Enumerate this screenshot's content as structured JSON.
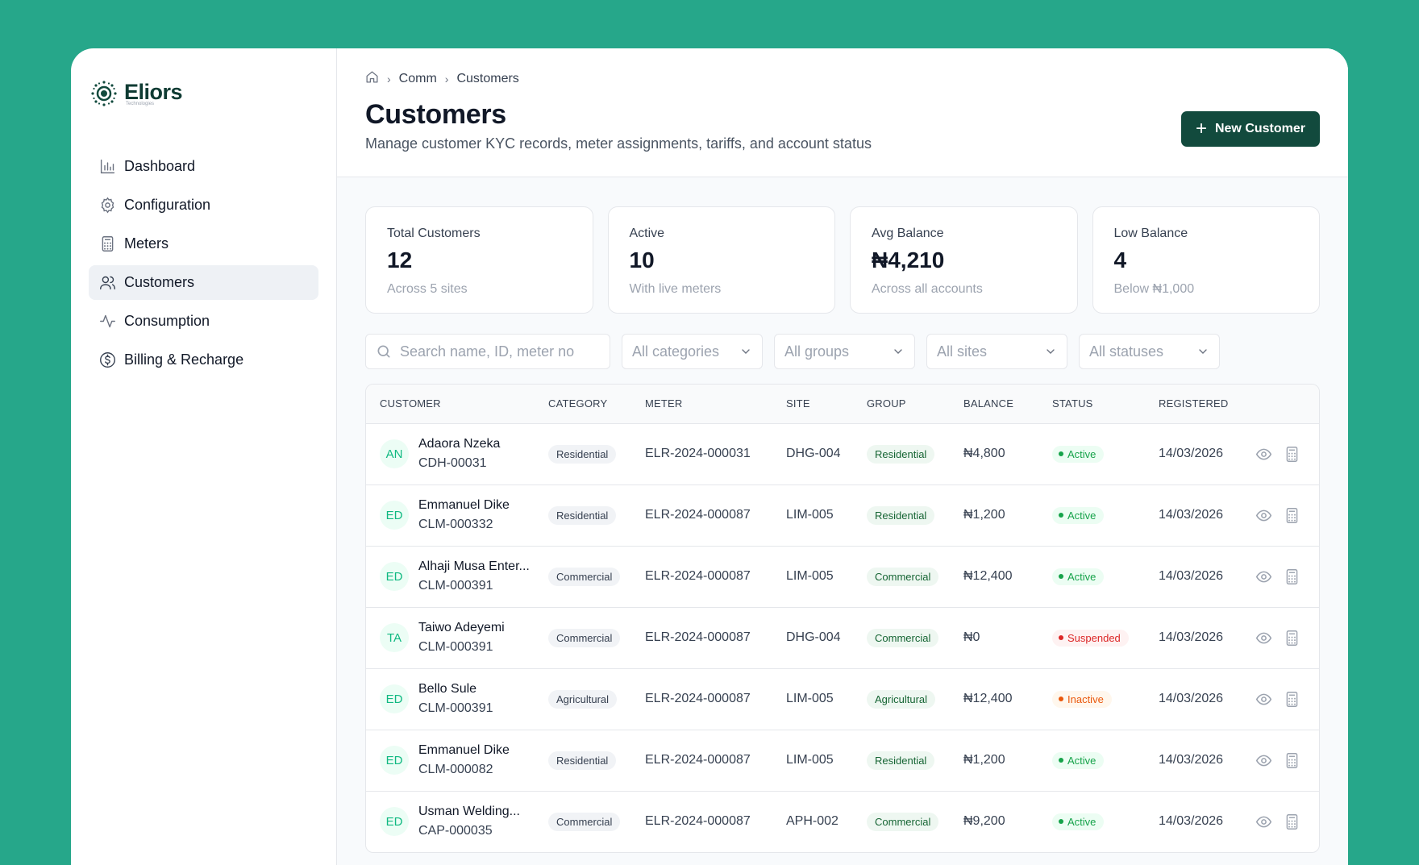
{
  "brand": {
    "name": "Eliors",
    "sub": "Technologies"
  },
  "sidebar": {
    "items": [
      {
        "label": "Dashboard",
        "icon": "bar-chart-icon"
      },
      {
        "label": "Configuration",
        "icon": "gear-icon"
      },
      {
        "label": "Meters",
        "icon": "calculator-icon"
      },
      {
        "label": "Customers",
        "icon": "users-icon",
        "active": true
      },
      {
        "label": "Consumption",
        "icon": "activity-icon"
      },
      {
        "label": "Billing & Recharge",
        "icon": "dollar-circle-icon"
      }
    ]
  },
  "breadcrumb": {
    "home_icon": "home-icon",
    "items": [
      "Comm",
      "Customers"
    ]
  },
  "header": {
    "title": "Customers",
    "subtitle": "Manage customer KYC records, meter assignments, tariffs, and account status",
    "new_button": "New Customer"
  },
  "stats": [
    {
      "label": "Total Customers",
      "value": "12",
      "note": "Across 5 sites"
    },
    {
      "label": "Active",
      "value": "10",
      "note": "With live meters"
    },
    {
      "label": "Avg Balance",
      "value": "₦4,210",
      "note": "Across all accounts"
    },
    {
      "label": "Low Balance",
      "value": "4",
      "note": "Below ₦1,000"
    }
  ],
  "filters": {
    "search_placeholder": "Search name, ID, meter no",
    "category": "All categories",
    "group": "All groups",
    "site": "All sites",
    "status": "All statuses"
  },
  "table": {
    "headers": [
      "Customer",
      "Category",
      "Meter",
      "Site",
      "Group",
      "Balance",
      "Status",
      "Registered"
    ],
    "rows": [
      {
        "initials": "AN",
        "name": "Adaora Nzeka",
        "id": "CDH-00031",
        "category": "Residential",
        "meter": "ELR-2024-000031",
        "site": "DHG-004",
        "group": "Residential",
        "balance": "₦4,800",
        "status": "Active",
        "status_kind": "active",
        "registered": "14/03/2026"
      },
      {
        "initials": "ED",
        "name": "Emmanuel Dike",
        "id": "CLM-000332",
        "category": "Residential",
        "meter": "ELR-2024-000087",
        "site": "LIM-005",
        "group": "Residential",
        "balance": "₦1,200",
        "status": "Active",
        "status_kind": "active",
        "registered": "14/03/2026"
      },
      {
        "initials": "ED",
        "name": "Alhaji Musa Enter...",
        "id": "CLM-000391",
        "category": "Commercial",
        "meter": "ELR-2024-000087",
        "site": "LIM-005",
        "group": "Commercial",
        "balance": "₦12,400",
        "status": "Active",
        "status_kind": "active",
        "registered": "14/03/2026"
      },
      {
        "initials": "TA",
        "name": "Taiwo Adeyemi",
        "id": "CLM-000391",
        "category": "Commercial",
        "meter": "ELR-2024-000087",
        "site": "DHG-004",
        "group": "Commercial",
        "balance": "₦0",
        "status": "Suspended",
        "status_kind": "suspended",
        "registered": "14/03/2026"
      },
      {
        "initials": "ED",
        "name": "Bello Sule",
        "id": "CLM-000391",
        "category": "Agricultural",
        "meter": "ELR-2024-000087",
        "site": "LIM-005",
        "group": "Agricultural",
        "balance": "₦12,400",
        "status": "Inactive",
        "status_kind": "inactive",
        "registered": "14/03/2026"
      },
      {
        "initials": "ED",
        "name": "Emmanuel Dike",
        "id": "CLM-000082",
        "category": "Residential",
        "meter": "ELR-2024-000087",
        "site": "LIM-005",
        "group": "Residential",
        "balance": "₦1,200",
        "status": "Active",
        "status_kind": "active",
        "registered": "14/03/2026"
      },
      {
        "initials": "ED",
        "name": "Usman Welding...",
        "id": "CAP-000035",
        "category": "Commercial",
        "meter": "ELR-2024-000087",
        "site": "APH-002",
        "group": "Commercial",
        "balance": "₦9,200",
        "status": "Active",
        "status_kind": "active",
        "registered": "14/03/2026"
      }
    ]
  },
  "colors": {
    "background": "#26a78a",
    "primary": "#124a3d",
    "accent": "#10b981"
  }
}
